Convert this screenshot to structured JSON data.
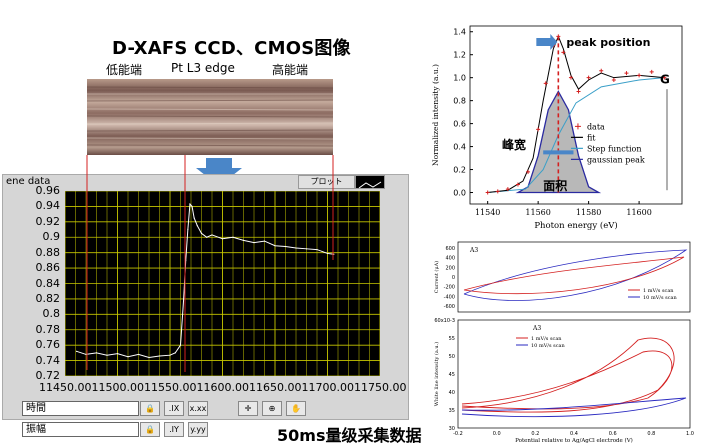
{
  "title": "D-XAFS CCD、CMOS图像",
  "ccd_labels": {
    "low": "低能端",
    "edge": "Pt L3 edge",
    "high": "高能端"
  },
  "labview": {
    "panel_title": "ene data",
    "plot_button": "プロット",
    "controls": [
      {
        "label": "時間"
      },
      {
        "label": "振幅"
      }
    ],
    "toolbar_icons": [
      "zoom-icon",
      "pan-icon",
      "hand-icon"
    ]
  },
  "caption": "50ms量级采集数据",
  "chart_data": [
    {
      "type": "line",
      "xlabel": "",
      "ylabel": "",
      "xlim": [
        11450,
        11750
      ],
      "ylim": [
        0.72,
        0.96
      ],
      "x_ticks": [
        "11450.00",
        "11500.00",
        "11550.00",
        "11600.00",
        "11650.00",
        "11700.00",
        "11750.00"
      ],
      "y_ticks": [
        "0.96",
        "0.94",
        "0.92",
        "0.9",
        "0.88",
        "0.86",
        "0.84",
        "0.82",
        "0.8",
        "0.78",
        "0.76",
        "0.74",
        "0.72"
      ],
      "series": [
        {
          "name": "",
          "x": [
            11461,
            11470,
            11480,
            11490,
            11500,
            11510,
            11520,
            11530,
            11540,
            11550,
            11555,
            11560,
            11563,
            11565,
            11567,
            11569,
            11571,
            11573,
            11576,
            11580,
            11585,
            11590,
            11600,
            11610,
            11620,
            11630,
            11640,
            11650,
            11660,
            11670,
            11680,
            11690,
            11700,
            11706
          ],
          "y": [
            0.752,
            0.748,
            0.75,
            0.747,
            0.749,
            0.745,
            0.748,
            0.744,
            0.746,
            0.747,
            0.75,
            0.76,
            0.82,
            0.87,
            0.91,
            0.943,
            0.94,
            0.925,
            0.915,
            0.905,
            0.9,
            0.903,
            0.898,
            0.9,
            0.896,
            0.893,
            0.895,
            0.889,
            0.888,
            0.886,
            0.885,
            0.884,
            0.879,
            0.878
          ]
        }
      ]
    },
    {
      "type": "line",
      "title": "",
      "xlabel": "Photon energy (eV)",
      "ylabel": "Normalized intensity (a.u.)",
      "xlim": [
        11533,
        11617
      ],
      "ylim": [
        -0.1,
        1.45
      ],
      "x_ticks": [
        "11540",
        "11560",
        "11580",
        "11600"
      ],
      "y_ticks": [
        "0.0",
        "0.2",
        "0.4",
        "0.6",
        "0.8",
        "1.0",
        "1.2",
        "1.4"
      ],
      "annotations": {
        "peak": "peak position",
        "width": "峰宽",
        "area": "面积",
        "g": "G"
      },
      "legend": [
        "data",
        "fit",
        "Step function",
        "gaussian peak"
      ],
      "series": [
        {
          "name": "data",
          "x": [
            11540,
            11544,
            11548,
            11552,
            11556,
            11560,
            11563,
            11566,
            11568,
            11570,
            11573,
            11576,
            11580,
            11585,
            11590,
            11595,
            11600,
            11605,
            11610
          ],
          "y": [
            0.0,
            0.01,
            0.03,
            0.07,
            0.18,
            0.55,
            0.95,
            1.28,
            1.36,
            1.22,
            1.0,
            0.88,
            1.0,
            1.06,
            0.98,
            1.04,
            1.02,
            1.05,
            1.0
          ]
        },
        {
          "name": "fit",
          "x": [
            11540,
            11548,
            11554,
            11558,
            11562,
            11566,
            11568,
            11570,
            11573,
            11576,
            11580,
            11585,
            11590,
            11600,
            11610
          ],
          "y": [
            0.0,
            0.02,
            0.1,
            0.3,
            0.8,
            1.25,
            1.36,
            1.25,
            1.02,
            0.9,
            0.98,
            1.04,
            1.0,
            1.02,
            1.0
          ]
        },
        {
          "name": "Step function",
          "x": [
            11540,
            11555,
            11562,
            11568,
            11575,
            11585,
            11600,
            11610
          ],
          "y": [
            0.0,
            0.03,
            0.2,
            0.5,
            0.78,
            0.92,
            0.98,
            1.0
          ]
        },
        {
          "name": "gaussian peak",
          "x": [
            11552,
            11556,
            11560,
            11564,
            11568,
            11572,
            11576,
            11580,
            11584
          ],
          "y": [
            0.0,
            0.05,
            0.32,
            0.72,
            0.88,
            0.72,
            0.32,
            0.05,
            0.0
          ]
        }
      ]
    },
    {
      "type": "line",
      "xlabel": "",
      "ylabel": "Current (μA)",
      "legend": [
        "1 mV/s scan",
        "10 mV/s scan"
      ],
      "series": [
        {
          "name": "1 mV/s scan"
        },
        {
          "name": "10 mV/s scan"
        }
      ],
      "tag": "A3",
      "y_ticks": [
        "600",
        "400",
        "200",
        "0",
        "-200",
        "-400",
        "-600"
      ]
    },
    {
      "type": "line",
      "xlabel": "Potential relative to Ag/AgCl electrode (V)",
      "ylabel": "White line intensity (a.u.)",
      "legend": [
        "1 mV/s scan",
        "10 mV/s scan"
      ],
      "series": [
        {
          "name": "1 mV/s scan"
        },
        {
          "name": "10 mV/s scan"
        }
      ],
      "tag": "A3",
      "y_ticks": [
        "60x10-3",
        "55",
        "50",
        "45",
        "40",
        "35",
        "30"
      ],
      "x_ticks": [
        "-0.2",
        "0.0",
        "0.2",
        "0.4",
        "0.6",
        "0.8",
        "1.0"
      ]
    }
  ]
}
